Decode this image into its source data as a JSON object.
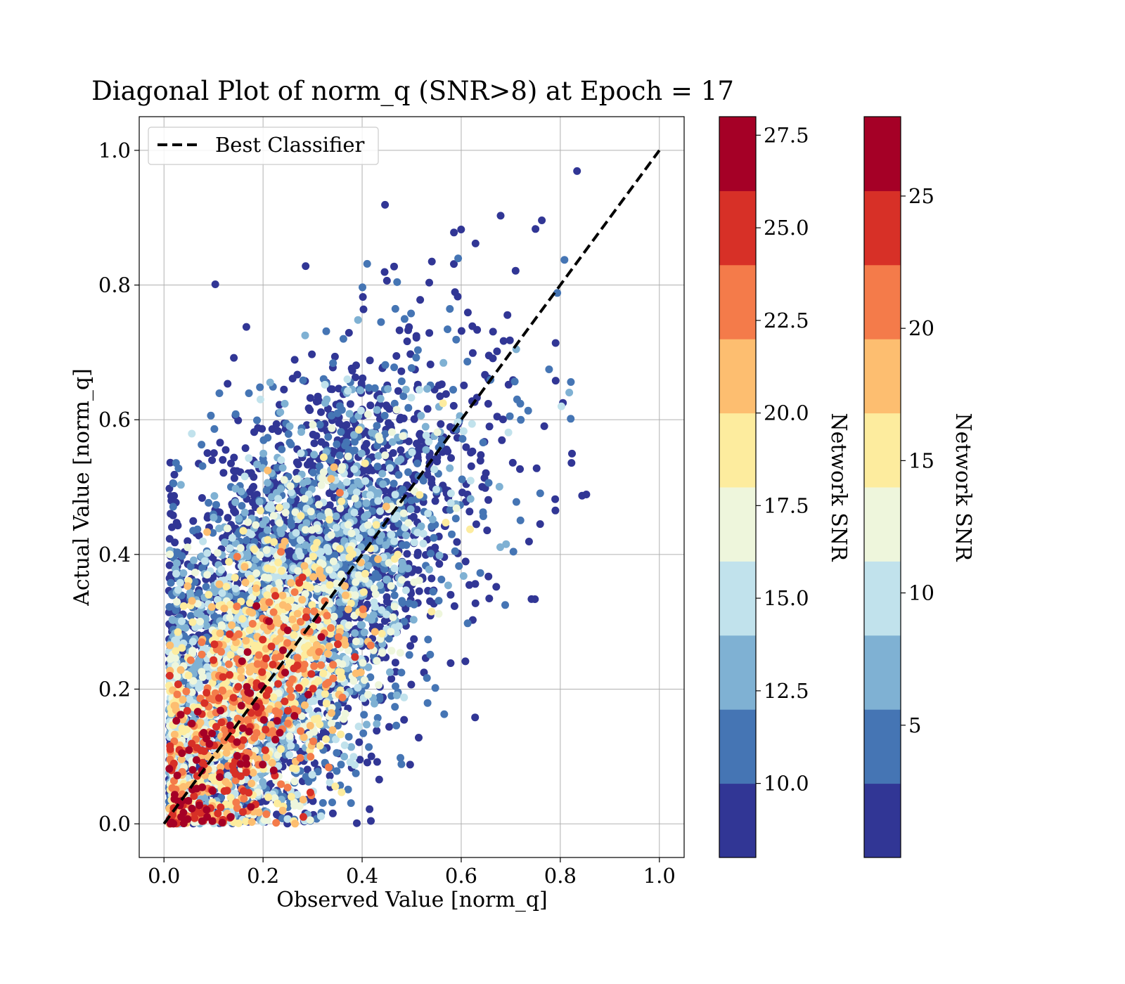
{
  "chart_data": {
    "type": "scatter",
    "title": "Diagonal Plot of norm_q (SNR>8) at Epoch = 17",
    "xlabel": "Observed Value [norm_q]",
    "ylabel": "Actual Value [norm_q]",
    "xlim": [
      -0.05,
      1.05
    ],
    "ylim": [
      -0.05,
      1.05
    ],
    "xticks": [
      "0.0",
      "0.2",
      "0.4",
      "0.6",
      "0.8",
      "1.0"
    ],
    "yticks": [
      "0.0",
      "0.2",
      "0.4",
      "0.6",
      "0.8",
      "1.0"
    ],
    "grid": true,
    "legend": {
      "position": "top-left",
      "entries": [
        {
          "label": "Best Classifier",
          "style": "dashed",
          "color": "#000000"
        }
      ]
    },
    "reference_line": {
      "x": [
        0,
        1
      ],
      "y": [
        0,
        1
      ]
    },
    "color_variable": "Network SNR",
    "points_description_count": 6000,
    "colorbars": [
      {
        "label": "Network SNR",
        "range": [
          8,
          28
        ],
        "tick_values": [
          10.0,
          12.5,
          15.0,
          17.5,
          20.0,
          22.5,
          25.0,
          27.5
        ],
        "tick_labels": [
          "10.0",
          "12.5",
          "15.0",
          "17.5",
          "20.0",
          "22.5",
          "25.0",
          "27.5"
        ]
      },
      {
        "label": "Network SNR",
        "range": [
          0,
          28
        ],
        "tick_values": [
          5,
          10,
          15,
          20,
          25
        ],
        "tick_labels": [
          "5",
          "10",
          "15",
          "20",
          "25"
        ]
      }
    ],
    "colormap": [
      "#313695",
      "#4575b4",
      "#7fb1d3",
      "#c1e2ec",
      "#eef6dc",
      "#fdec9e",
      "#fdbe70",
      "#f47b4a",
      "#d73027",
      "#a50026"
    ]
  }
}
